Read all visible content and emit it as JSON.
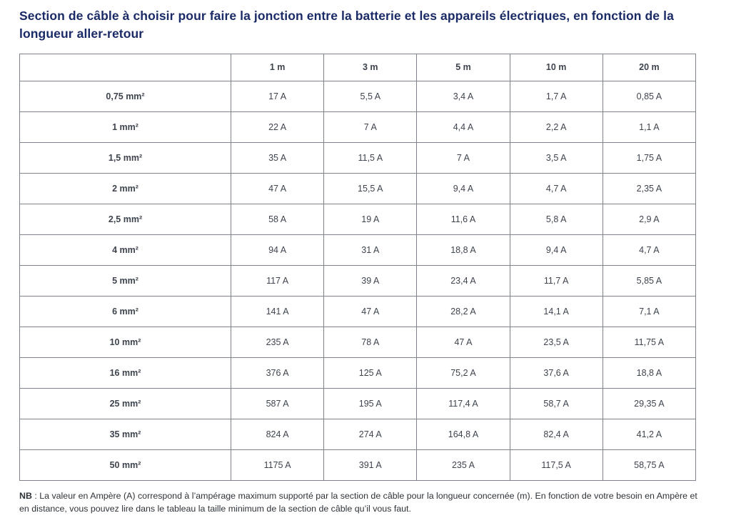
{
  "title": "Section de câble à choisir pour faire la jonction entre la batterie et les appareils électriques, en fonction de la longueur aller-retour",
  "table": {
    "headers": [
      "",
      "1 m",
      "3 m",
      "5 m",
      "10 m",
      "20 m"
    ],
    "rows": [
      {
        "label": "0,75 mm²",
        "values": [
          "17 A",
          "5,5 A",
          "3,4 A",
          "1,7 A",
          "0,85 A"
        ]
      },
      {
        "label": "1 mm²",
        "values": [
          "22 A",
          "7 A",
          "4,4 A",
          "2,2 A",
          "1,1 A"
        ]
      },
      {
        "label": "1,5 mm²",
        "values": [
          "35 A",
          "11,5 A",
          "7 A",
          "3,5 A",
          "1,75 A"
        ]
      },
      {
        "label": "2 mm²",
        "values": [
          "47 A",
          "15,5 A",
          "9,4 A",
          "4,7 A",
          "2,35 A"
        ]
      },
      {
        "label": "2,5 mm²",
        "values": [
          "58 A",
          "19 A",
          "11,6 A",
          "5,8 A",
          "2,9 A"
        ]
      },
      {
        "label": "4 mm²",
        "values": [
          "94 A",
          "31 A",
          "18,8 A",
          "9,4 A",
          "4,7 A"
        ]
      },
      {
        "label": "5 mm²",
        "values": [
          "117 A",
          "39 A",
          "23,4 A",
          "11,7 A",
          "5,85 A"
        ]
      },
      {
        "label": "6 mm²",
        "values": [
          "141 A",
          "47 A",
          "28,2 A",
          "14,1 A",
          "7,1 A"
        ]
      },
      {
        "label": "10 mm²",
        "values": [
          "235 A",
          "78 A",
          "47 A",
          "23,5 A",
          "11,75 A"
        ]
      },
      {
        "label": "16 mm²",
        "values": [
          "376 A",
          "125 A",
          "75,2 A",
          "37,6 A",
          "18,8 A"
        ]
      },
      {
        "label": "25 mm²",
        "values": [
          "587 A",
          "195 A",
          "117,4 A",
          "58,7 A",
          "29,35 A"
        ]
      },
      {
        "label": "35 mm²",
        "values": [
          "824 A",
          "274 A",
          "164,8 A",
          "82,4 A",
          "41,2 A"
        ]
      },
      {
        "label": "50 mm²",
        "values": [
          "1175 A",
          "391 A",
          "235 A",
          "117,5 A",
          "58,75 A"
        ]
      }
    ]
  },
  "note": {
    "prefix": "NB",
    "body": " : La valeur en Ampère (A) correspond à l’ampérage maximum supporté par la section de câble pour la longueur concernée (m). En fonction de votre besoin en Ampère et en distance, vous pouvez lire dans le tableau la taille minimum de la section de câble qu’il vous faut."
  },
  "colors": {
    "title": "#1a2a66",
    "table_text": "#3e444e",
    "border": "#7e838b",
    "note_text": "#2e3338"
  }
}
